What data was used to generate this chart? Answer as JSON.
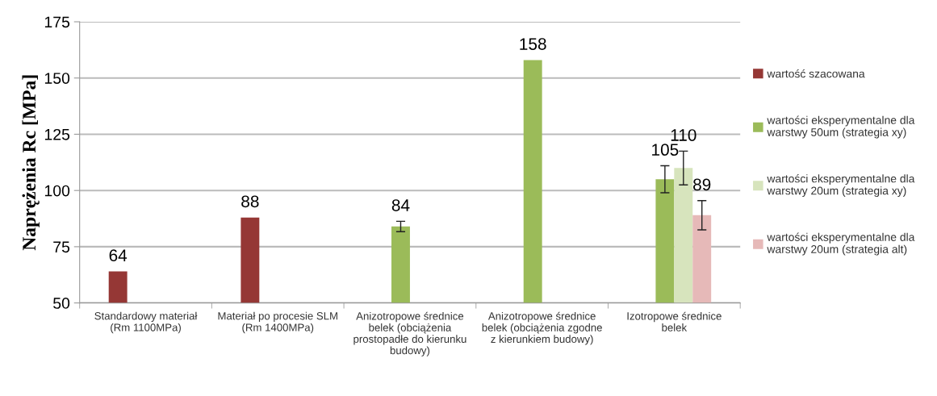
{
  "chart_data": {
    "type": "bar",
    "ylabel": "Naprężenia Rc [MPa]",
    "categories": [
      "Standardowy materiał\n(Rm 1100MPa)",
      "Materiał po procesie SLM\n(Rm 1400MPa)",
      "Anizotropowe średnice\nbelek (obciążenia\nprostopadłe do kierunku\nbudowy)",
      "Anizotropowe średnice\nbelek (obciążenia zgodne\nz kierunkiem budowy)",
      "Izotropowe średnice\nbelek"
    ],
    "series": [
      {
        "name": "wartość szacowana",
        "color": "#953735",
        "values": [
          64,
          88,
          null,
          null,
          null
        ]
      },
      {
        "name": "wartości eksperymentalne dla\nwarstwy 50um (strategia xy)",
        "color": "#9bbb59",
        "values": [
          null,
          null,
          84,
          158,
          105
        ],
        "errors": [
          null,
          null,
          2.3,
          null,
          6
        ]
      },
      {
        "name": "wartości eksperymentalne dla\nwarstwy 20um (strategia xy)",
        "color": "#d7e4bd",
        "values": [
          null,
          null,
          null,
          null,
          110
        ],
        "errors": [
          null,
          null,
          null,
          null,
          7.5
        ]
      },
      {
        "name": "wartości eksperymentalne dla\nwarstwy 20um (strategia alt)",
        "color": "#e6b9b8",
        "values": [
          null,
          null,
          null,
          null,
          89
        ],
        "errors": [
          null,
          null,
          null,
          null,
          6.5
        ]
      }
    ],
    "ylim": [
      50,
      175
    ],
    "yticks": [
      50,
      75,
      100,
      125,
      150,
      175
    ],
    "grid": "y",
    "legend": "right",
    "data_labels": true
  }
}
